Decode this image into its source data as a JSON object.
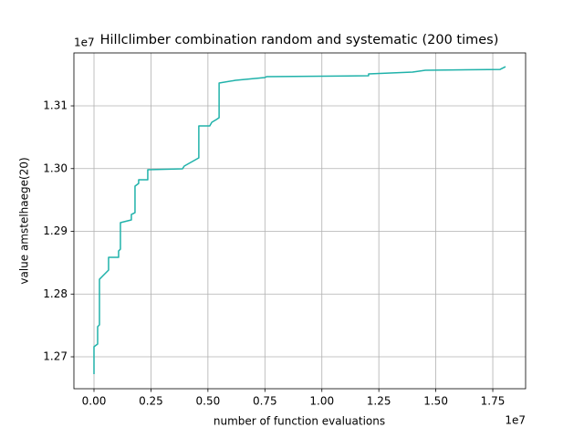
{
  "chart_data": {
    "type": "line",
    "title": "Hillclimber combination random and systematic (200 times)",
    "x_label": "number of function evaluations",
    "y_label": "value amstelhaege(20)",
    "x_offset_label": "1e7",
    "y_offset_label": "1e7",
    "color": "#20b2aa",
    "grid": true,
    "x": [
      0,
      0,
      160000,
      160000,
      240000,
      240000,
      400000,
      640000,
      640000,
      1080000,
      1080000,
      1160000,
      1160000,
      1640000,
      1640000,
      1800000,
      1800000,
      1960000,
      1960000,
      2360000,
      2360000,
      3880000,
      3960000,
      4600000,
      4600000,
      5080000,
      5170000,
      5370000,
      5490000,
      5490000,
      6210000,
      7490000,
      7570000,
      12050000,
      12050000,
      13980000,
      14540000,
      17820000,
      18060000
    ],
    "values": [
      12672400,
      12716000,
      12720400,
      12748000,
      12750900,
      12823600,
      12829500,
      12838200,
      12858500,
      12858500,
      12868700,
      12871600,
      12913800,
      12918200,
      12926900,
      12929800,
      12972000,
      12976400,
      12982200,
      12982200,
      12998200,
      12999600,
      13004000,
      13017100,
      13068000,
      13068000,
      13073800,
      13078200,
      13081100,
      13136400,
      13140700,
      13145100,
      13146500,
      13148000,
      13150900,
      13153800,
      13156700,
      13158100,
      13162500
    ],
    "xlim": [
      -881000,
      18940000
    ],
    "ylim": [
      12649100,
      13184400
    ],
    "xticks": [
      {
        "value": 0,
        "label": "0.00"
      },
      {
        "value": 2500000,
        "label": "0.25"
      },
      {
        "value": 5000000,
        "label": "0.50"
      },
      {
        "value": 7500000,
        "label": "0.75"
      },
      {
        "value": 10000000,
        "label": "1.00"
      },
      {
        "value": 12500000,
        "label": "1.25"
      },
      {
        "value": 15000000,
        "label": "1.50"
      },
      {
        "value": 17500000,
        "label": "1.75"
      }
    ],
    "yticks": [
      {
        "value": 12700000,
        "label": "1.27"
      },
      {
        "value": 12800000,
        "label": "1.28"
      },
      {
        "value": 12900000,
        "label": "1.29"
      },
      {
        "value": 13000000,
        "label": "1.30"
      },
      {
        "value": 13100000,
        "label": "1.31"
      }
    ]
  }
}
